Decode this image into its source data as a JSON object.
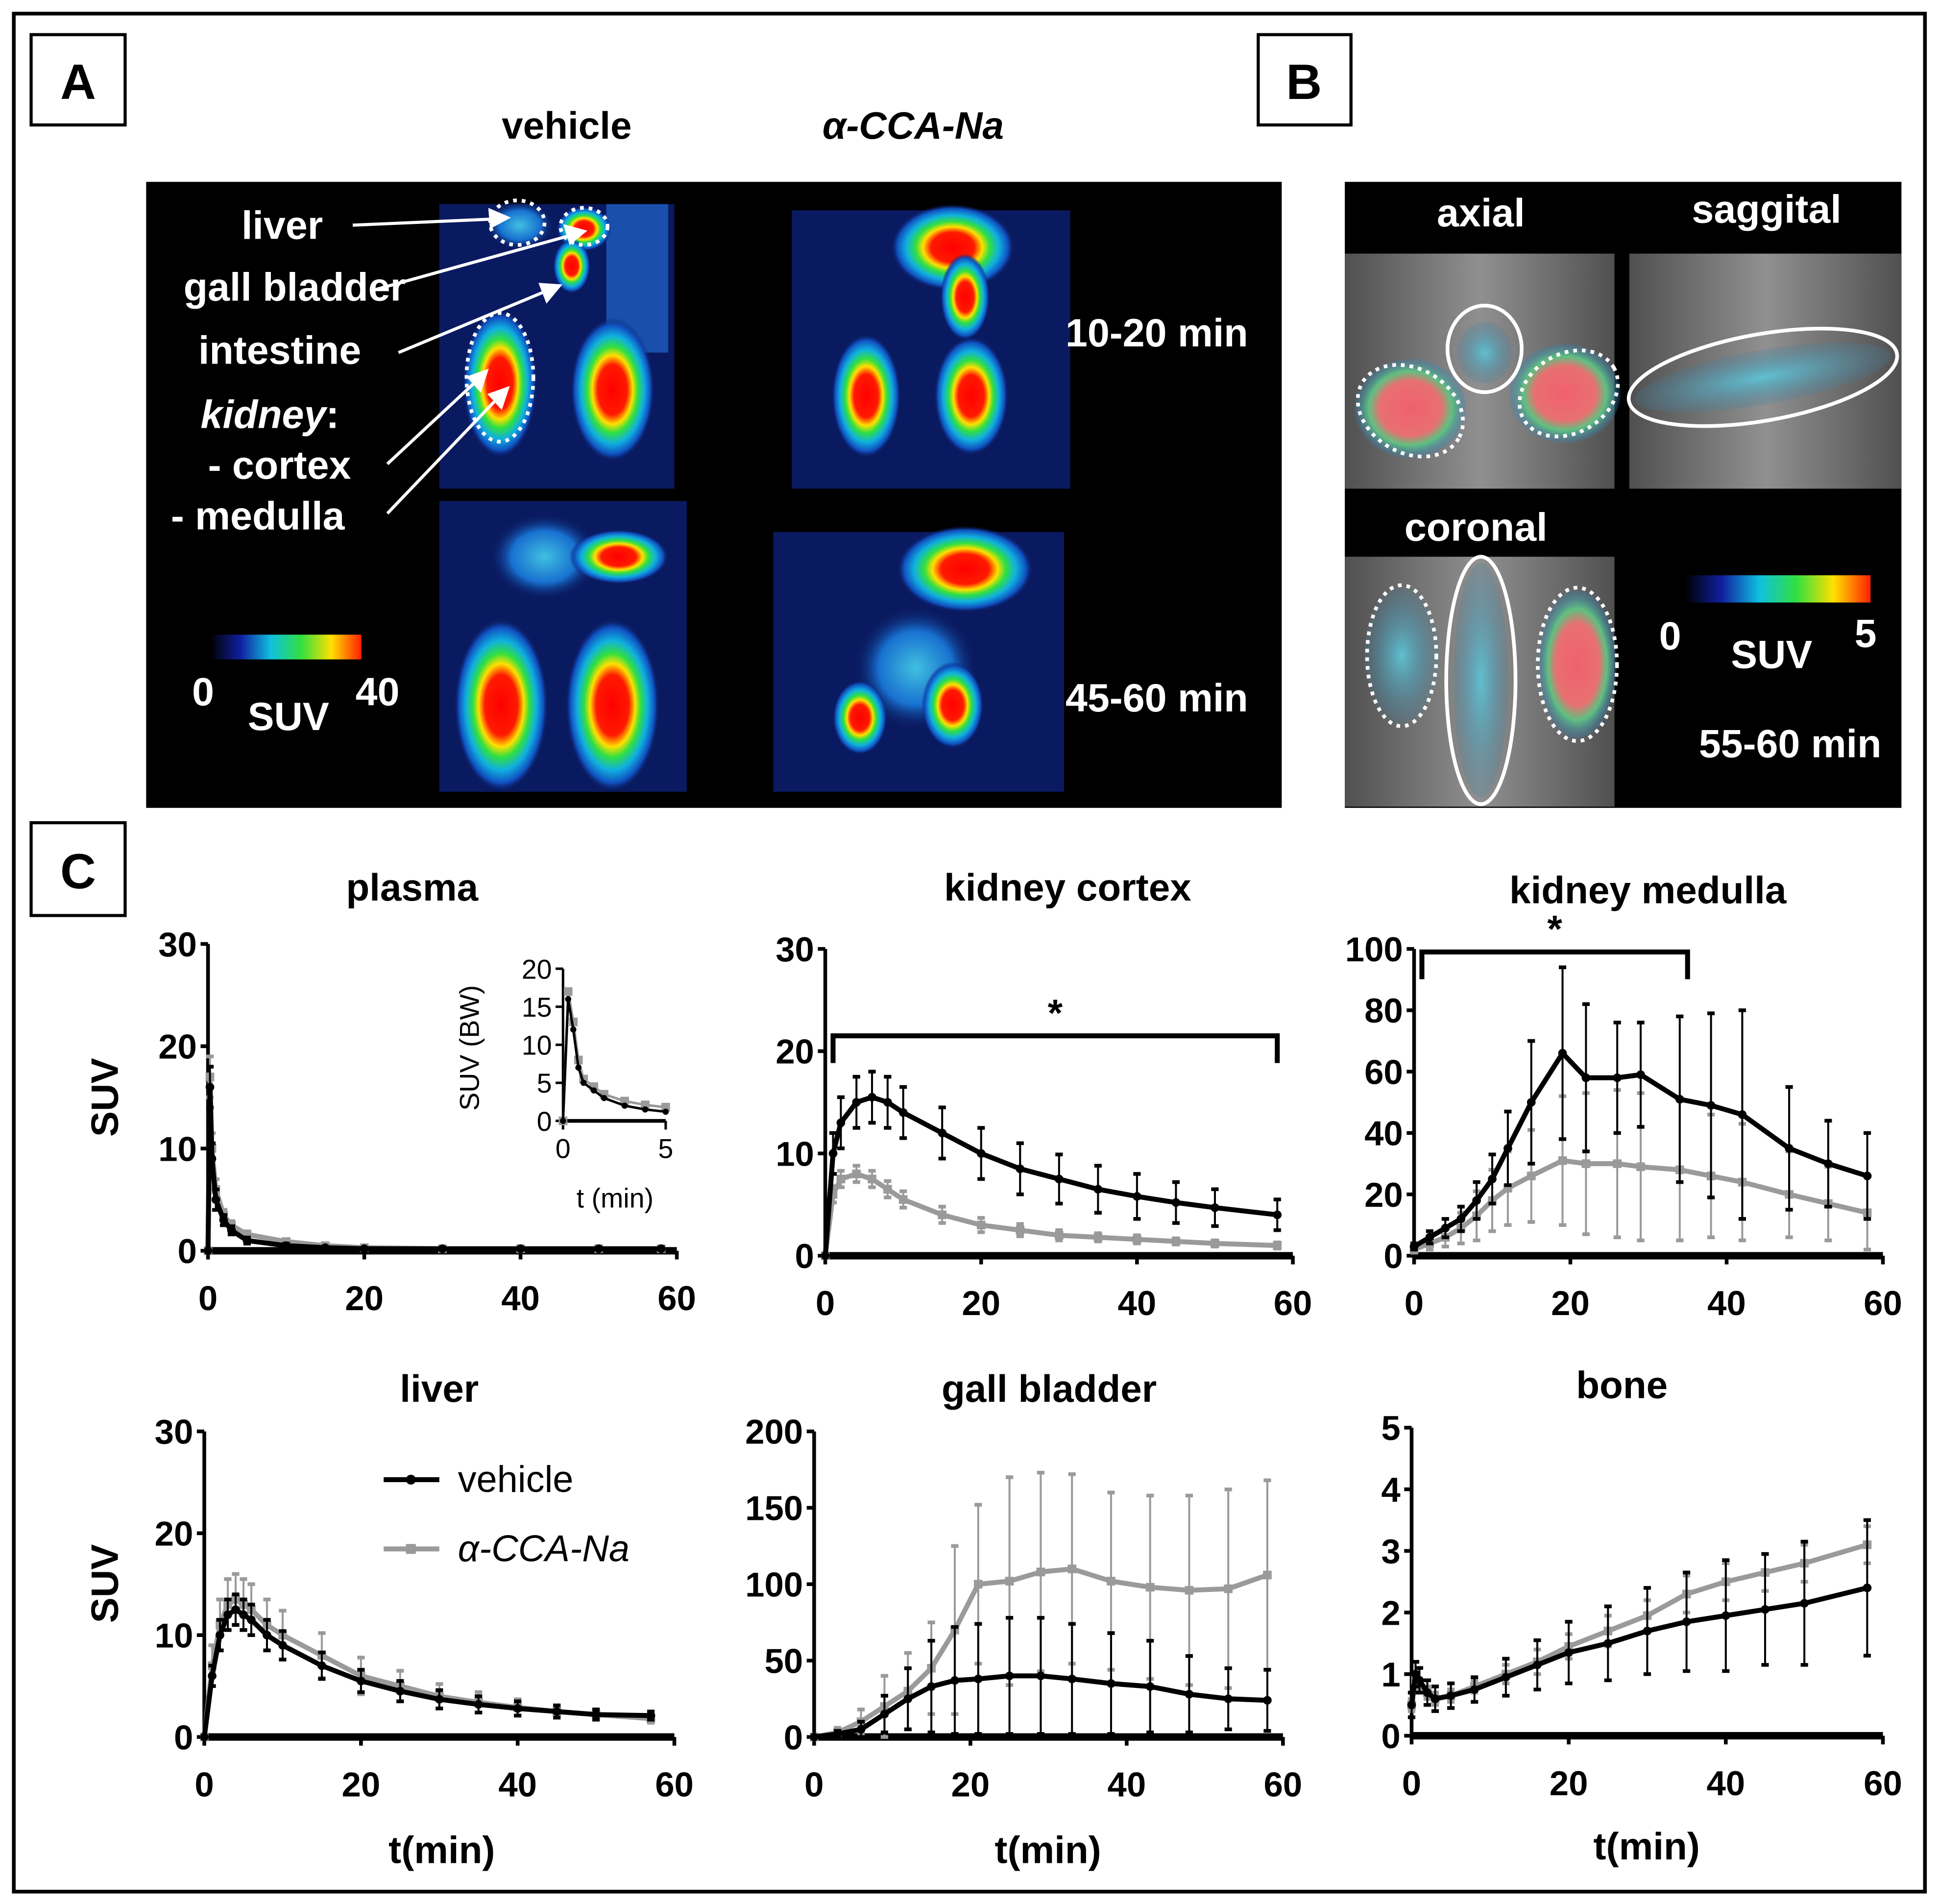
{
  "panels": {
    "a": {
      "label": "A",
      "col_vehicle": "vehicle",
      "col_cca": "α-CCA-Na",
      "organs": {
        "liver": "liver",
        "gall_bladder": "gall bladder",
        "intestine": "intestine",
        "kidney": "kidney",
        "kidney_colon": ":",
        "cortex": "- cortex",
        "medulla": "- medulla"
      },
      "time_1": "10-20 min",
      "time_2": "45-60 min",
      "scale": {
        "min": "0",
        "label": "SUV",
        "max": "40"
      }
    },
    "b": {
      "label": "B",
      "views": {
        "axial": "axial",
        "sagittal": "saggital",
        "coronal": "coronal"
      },
      "scale": {
        "min": "0",
        "label": "SUV",
        "max": "5"
      },
      "time": "55-60 min"
    },
    "c": {
      "label": "C"
    }
  },
  "colors": {
    "vehicle": "#000000",
    "cca": "#9a9a9a"
  },
  "legend": {
    "vehicle": "vehicle",
    "cca": "α-CCA-Na"
  },
  "chart_data": [
    {
      "id": "plasma",
      "type": "line",
      "title": "plasma",
      "ylabel": "SUV",
      "xlabel": "",
      "xlim": [
        0,
        60
      ],
      "ylim": [
        0,
        30
      ],
      "xticks": [
        0,
        20,
        40,
        60
      ],
      "yticks": [
        0,
        10,
        20,
        30
      ],
      "series": [
        {
          "name": "vehicle",
          "x": [
            0,
            0.25,
            0.5,
            1,
            2,
            3,
            5,
            10,
            15,
            20,
            30,
            40,
            50,
            58
          ],
          "y": [
            0,
            16,
            9,
            5,
            3,
            2,
            1,
            0.5,
            0.3,
            0.2,
            0.2,
            0.2,
            0.2,
            0.2
          ],
          "err": [
            0,
            2,
            1.5,
            1,
            0.5,
            0.4,
            0.3,
            0.2,
            0.1,
            0.1,
            0.1,
            0.1,
            0.1,
            0.1
          ]
        },
        {
          "name": "α-CCA-Na",
          "x": [
            0,
            0.25,
            0.5,
            1,
            2,
            3,
            5,
            10,
            15,
            20,
            30,
            40,
            50,
            58
          ],
          "y": [
            0,
            17,
            10,
            6,
            3.5,
            2.5,
            1.6,
            0.9,
            0.5,
            0.3,
            0.2,
            0.2,
            0.2,
            0.2
          ],
          "err": [
            0,
            2,
            1.5,
            1,
            0.5,
            0.4,
            0.3,
            0.2,
            0.1,
            0.1,
            0.1,
            0.1,
            0.1,
            0.1
          ]
        }
      ],
      "inset": {
        "ylabel": "SUV (BW)",
        "xlabel": "t (min)",
        "xlim": [
          0,
          5
        ],
        "ylim": [
          0,
          20
        ],
        "xticks": [
          0,
          5
        ],
        "yticks": [
          0,
          5,
          10,
          15,
          20
        ],
        "series": [
          {
            "name": "vehicle",
            "x": [
              0,
              0.25,
              0.5,
              0.75,
              1,
              1.5,
              2,
              3,
              4,
              5
            ],
            "y": [
              0,
              16,
              12,
              7,
              5,
              4,
              3,
              2,
              1.5,
              1.2
            ]
          },
          {
            "name": "α-CCA-Na",
            "x": [
              0,
              0.25,
              0.5,
              0.75,
              1,
              1.5,
              2,
              3,
              4,
              5
            ],
            "y": [
              0,
              17,
              13,
              8,
              5.5,
              4.5,
              3.5,
              2.6,
              2.1,
              1.8
            ]
          }
        ]
      }
    },
    {
      "id": "kidney-cortex",
      "type": "line",
      "title": "kidney cortex",
      "ylabel": "",
      "xlabel": "",
      "xlim": [
        0,
        60
      ],
      "ylim": [
        0,
        30
      ],
      "xticks": [
        0,
        20,
        40,
        60
      ],
      "yticks": [
        0,
        10,
        20,
        30
      ],
      "significance": {
        "x": [
          1,
          58
        ],
        "y": 21.5,
        "label": "*"
      },
      "series": [
        {
          "name": "vehicle",
          "x": [
            0,
            1,
            2,
            4,
            6,
            8,
            10,
            15,
            20,
            25,
            30,
            35,
            40,
            45,
            50,
            58
          ],
          "y": [
            0,
            10,
            13,
            15,
            15.5,
            15,
            14,
            12,
            10,
            8.5,
            7.5,
            6.5,
            5.8,
            5.2,
            4.7,
            4
          ],
          "err": [
            0,
            2,
            2.5,
            2.5,
            2.5,
            2.5,
            2.5,
            2.5,
            2.5,
            2.5,
            2.4,
            2.3,
            2.2,
            2,
            1.8,
            1.5
          ]
        },
        {
          "name": "α-CCA-Na",
          "x": [
            0,
            1,
            2,
            4,
            6,
            8,
            10,
            15,
            20,
            25,
            30,
            35,
            40,
            45,
            50,
            58
          ],
          "y": [
            0,
            6,
            7.5,
            8,
            7.5,
            6.5,
            5.5,
            4,
            3,
            2.5,
            2,
            1.8,
            1.6,
            1.4,
            1.2,
            1.0
          ],
          "err": [
            0,
            0.8,
            0.8,
            0.8,
            0.8,
            0.8,
            0.8,
            0.8,
            0.7,
            0.6,
            0.5,
            0.4,
            0.4,
            0.3,
            0.3,
            0.3
          ]
        }
      ]
    },
    {
      "id": "kidney-medulla",
      "type": "line",
      "title": "kidney medulla",
      "ylabel": "",
      "xlabel": "",
      "xlim": [
        0,
        60
      ],
      "ylim": [
        0,
        100
      ],
      "xticks": [
        0,
        20,
        40,
        60
      ],
      "yticks": [
        0,
        20,
        40,
        60,
        80,
        100
      ],
      "significance": {
        "x": [
          1,
          35
        ],
        "y": 99,
        "label": "*"
      },
      "series": [
        {
          "name": "vehicle",
          "x": [
            0,
            2,
            4,
            6,
            8,
            10,
            12,
            15,
            19,
            22,
            26,
            29,
            34,
            38,
            42,
            48,
            53,
            58
          ],
          "y": [
            3,
            6,
            9,
            12,
            18,
            25,
            35,
            50,
            66,
            58,
            58,
            59,
            51,
            49,
            46,
            35,
            30,
            26
          ],
          "err": [
            1,
            2,
            3,
            4,
            6,
            8,
            12,
            20,
            28,
            24,
            18,
            17,
            27,
            30,
            34,
            20,
            14,
            14
          ]
        },
        {
          "name": "α-CCA-Na",
          "x": [
            0,
            2,
            4,
            6,
            8,
            10,
            12,
            15,
            19,
            22,
            26,
            29,
            34,
            38,
            42,
            48,
            53,
            58
          ],
          "y": [
            2,
            4,
            6,
            9,
            13,
            18,
            22,
            26,
            31,
            30,
            30,
            29,
            28,
            26,
            24,
            20,
            17,
            14
          ],
          "err": [
            1,
            2,
            3,
            5,
            8,
            10,
            12,
            15,
            21,
            23,
            24,
            24,
            23,
            20,
            19,
            14,
            12,
            12
          ]
        }
      ]
    },
    {
      "id": "liver",
      "type": "line",
      "title": "liver",
      "ylabel": "SUV",
      "xlabel": "t(min)",
      "xlim": [
        0,
        60
      ],
      "ylim": [
        0,
        30
      ],
      "xticks": [
        0,
        20,
        40,
        60
      ],
      "yticks": [
        0,
        10,
        20,
        30
      ],
      "series": [
        {
          "name": "vehicle",
          "x": [
            0,
            1,
            2,
            3,
            4,
            5,
            6,
            8,
            10,
            15,
            20,
            25,
            30,
            35,
            40,
            45,
            50,
            57
          ],
          "y": [
            0,
            6,
            10,
            12,
            12.5,
            12,
            11.5,
            10,
            9,
            7,
            5.5,
            4.5,
            3.7,
            3.2,
            2.8,
            2.5,
            2.2,
            2.1
          ],
          "err": [
            0,
            1,
            1.5,
            1.5,
            1.5,
            1.5,
            1.5,
            1.5,
            1.4,
            1.3,
            1.1,
            1,
            0.9,
            0.8,
            0.7,
            0.6,
            0.5,
            0.4
          ]
        },
        {
          "name": "α-CCA-Na",
          "x": [
            0,
            1,
            2,
            3,
            4,
            5,
            6,
            8,
            10,
            15,
            20,
            25,
            30,
            35,
            40,
            45,
            50,
            57
          ],
          "y": [
            0,
            7,
            11,
            13,
            13.5,
            13,
            12.5,
            11,
            10,
            8,
            6,
            5,
            4,
            3.4,
            2.9,
            2.5,
            2.2,
            1.8
          ],
          "err": [
            0,
            2,
            2.5,
            2.5,
            2.5,
            2.5,
            2.5,
            2.5,
            2.4,
            2.2,
            1.8,
            1.5,
            1.2,
            1,
            0.8,
            0.6,
            0.5,
            0.4
          ]
        }
      ]
    },
    {
      "id": "gall-bladder",
      "type": "line",
      "title": "gall bladder",
      "ylabel": "",
      "xlabel": "t(min)",
      "xlim": [
        0,
        60
      ],
      "ylim": [
        0,
        200
      ],
      "xticks": [
        0,
        20,
        40,
        60
      ],
      "yticks": [
        0,
        50,
        100,
        150,
        200
      ],
      "series": [
        {
          "name": "vehicle",
          "x": [
            0,
            3,
            6,
            9,
            12,
            15,
            18,
            21,
            25,
            29,
            33,
            38,
            43,
            48,
            53,
            58
          ],
          "y": [
            0,
            2,
            5,
            15,
            25,
            33,
            37,
            38,
            40,
            40,
            38,
            35,
            33,
            28,
            25,
            24
          ],
          "err": [
            0,
            2,
            5,
            12,
            20,
            30,
            35,
            36,
            38,
            38,
            36,
            33,
            30,
            25,
            20,
            20
          ]
        },
        {
          "name": "α-CCA-Na",
          "x": [
            0,
            3,
            6,
            9,
            12,
            15,
            18,
            21,
            25,
            29,
            33,
            38,
            43,
            48,
            53,
            58
          ],
          "y": [
            0,
            3,
            10,
            20,
            30,
            45,
            70,
            100,
            102,
            108,
            110,
            102,
            98,
            96,
            97,
            106
          ],
          "err": [
            0,
            3,
            8,
            20,
            25,
            30,
            55,
            52,
            68,
            65,
            62,
            58,
            60,
            62,
            65,
            62
          ]
        }
      ]
    },
    {
      "id": "bone",
      "type": "line",
      "title": "bone",
      "ylabel": "",
      "xlabel": "t(min)",
      "xlim": [
        0,
        60
      ],
      "ylim": [
        0,
        5
      ],
      "xticks": [
        0,
        20,
        40,
        60
      ],
      "yticks": [
        0,
        1,
        2,
        3,
        4,
        5
      ],
      "series": [
        {
          "name": "vehicle",
          "x": [
            0,
            0.5,
            1,
            2,
            3,
            5,
            8,
            12,
            16,
            20,
            25,
            30,
            35,
            40,
            45,
            50,
            58
          ],
          "y": [
            0.5,
            1.0,
            0.9,
            0.7,
            0.6,
            0.65,
            0.75,
            0.95,
            1.15,
            1.35,
            1.5,
            1.7,
            1.85,
            1.95,
            2.05,
            2.15,
            2.4
          ],
          "err": [
            0.2,
            0.2,
            0.2,
            0.2,
            0.2,
            0.2,
            0.2,
            0.3,
            0.4,
            0.5,
            0.6,
            0.7,
            0.8,
            0.9,
            0.9,
            1,
            1.1
          ]
        },
        {
          "name": "α-CCA-Na",
          "x": [
            0,
            0.5,
            1,
            2,
            3,
            5,
            8,
            12,
            16,
            20,
            25,
            30,
            35,
            40,
            45,
            50,
            58
          ],
          "y": [
            0.5,
            0.9,
            0.8,
            0.7,
            0.6,
            0.65,
            0.8,
            1.0,
            1.2,
            1.45,
            1.7,
            1.95,
            2.3,
            2.5,
            2.65,
            2.8,
            3.1
          ],
          "err": [
            0.1,
            0.1,
            0.1,
            0.1,
            0.1,
            0.1,
            0.1,
            0.15,
            0.2,
            0.2,
            0.25,
            0.25,
            0.3,
            0.3,
            0.3,
            0.3,
            0.3
          ]
        }
      ]
    }
  ]
}
